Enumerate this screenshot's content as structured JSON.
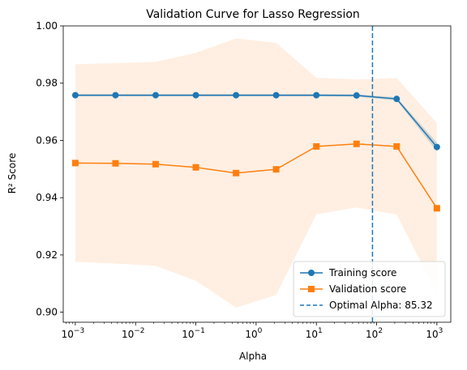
{
  "chart_data": {
    "type": "line",
    "title": "Validation Curve for Lasso Regression",
    "xlabel": "Alpha",
    "ylabel": "R² Score",
    "xscale": "log",
    "xlim": [
      0.00063,
      1700
    ],
    "ylim": [
      0.8965,
      1.0
    ],
    "xticks": [
      {
        "value": 0.001,
        "base": "10",
        "exp": "−3"
      },
      {
        "value": 0.01,
        "base": "10",
        "exp": "−2"
      },
      {
        "value": 0.1,
        "base": "10",
        "exp": "−1"
      },
      {
        "value": 1,
        "base": "10",
        "exp": "0"
      },
      {
        "value": 10,
        "base": "10",
        "exp": "1"
      },
      {
        "value": 100,
        "base": "10",
        "exp": "2"
      },
      {
        "value": 1000,
        "base": "10",
        "exp": "3"
      }
    ],
    "yticks": [
      {
        "value": 0.9,
        "label": "0.90"
      },
      {
        "value": 0.92,
        "label": "0.92"
      },
      {
        "value": 0.94,
        "label": "0.94"
      },
      {
        "value": 0.96,
        "label": "0.96"
      },
      {
        "value": 0.98,
        "label": "0.98"
      },
      {
        "value": 1.0,
        "label": "1.00"
      }
    ],
    "x": [
      0.001,
      0.00464,
      0.0215,
      0.1,
      0.464,
      2.15,
      10,
      46.4,
      215,
      1000
    ],
    "series": [
      {
        "name": "Training score",
        "color": "#1f77b4",
        "marker": "circle",
        "values": [
          0.9758,
          0.9758,
          0.9758,
          0.9758,
          0.9758,
          0.9758,
          0.9758,
          0.9757,
          0.9745,
          0.9577
        ],
        "band_lower": [
          0.9754,
          0.9754,
          0.9754,
          0.9754,
          0.9754,
          0.9754,
          0.9754,
          0.9753,
          0.974,
          0.9562
        ],
        "band_upper": [
          0.9762,
          0.9762,
          0.9762,
          0.9762,
          0.9762,
          0.9762,
          0.9762,
          0.9761,
          0.975,
          0.9592
        ],
        "band_color": "#1f77b4"
      },
      {
        "name": "Validation score",
        "color": "#ff7f0e",
        "marker": "square",
        "values": [
          0.9521,
          0.952,
          0.9517,
          0.9506,
          0.9486,
          0.9499,
          0.9579,
          0.9588,
          0.9579,
          0.9363
        ],
        "band_lower": [
          0.9176,
          0.917,
          0.9162,
          0.911,
          0.9016,
          0.906,
          0.9342,
          0.9366,
          0.9341,
          0.9065
        ],
        "band_upper": [
          0.9866,
          0.987,
          0.9874,
          0.9906,
          0.9956,
          0.9941,
          0.9819,
          0.9813,
          0.9818,
          0.9661
        ],
        "band_color": "#ff7f0e"
      }
    ],
    "vline": {
      "x": 85.32,
      "color": "#1f77b4",
      "style": "dashed",
      "label": "Optimal Alpha: 85.32"
    },
    "legend": {
      "position": "lower right"
    }
  }
}
